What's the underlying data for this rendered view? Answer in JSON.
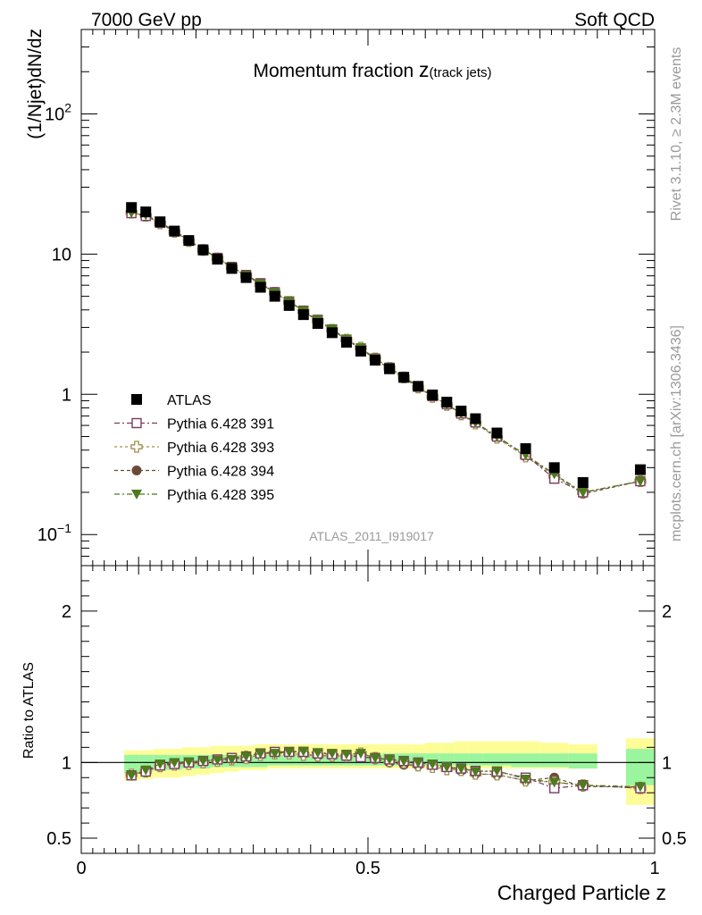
{
  "header": {
    "left": "7000 GeV pp",
    "right": "Soft QCD"
  },
  "side": {
    "rivet": "Rivet 3.1.10, ≥ 2.3M events",
    "mcplots": "mcplots.cern.ch [arXiv:1306.3436]"
  },
  "chart_data": {
    "type": "scatter",
    "title_main": "Momentum fraction ",
    "title_z": "z",
    "title_sub": "(track jets)",
    "ylabel": "(1/Njet)dN/dz",
    "xlabel": "Charged Particle z",
    "ratio_ylabel": "Ratio to ATLAS",
    "analysis_label": "ATLAS_2011_I919017",
    "xlim": [
      0,
      1
    ],
    "ylim": [
      0.06,
      400
    ],
    "ylog": true,
    "ratio_ylim": [
      0.4,
      2.3
    ],
    "x_ticks": [
      {
        "v": 0,
        "t": "0"
      },
      {
        "v": 0.5,
        "t": "0.5"
      },
      {
        "v": 1,
        "t": "1"
      }
    ],
    "y_ticks": [
      {
        "v": 100,
        "t": "10",
        "sup": "2"
      },
      {
        "v": 10,
        "t": "10",
        "sup": ""
      },
      {
        "v": 1,
        "t": "1",
        "sup": ""
      },
      {
        "v": 0.1,
        "t": "10",
        "sup": "−1"
      }
    ],
    "ratio_ticks": [
      {
        "v": 0.5,
        "t": "0.5"
      },
      {
        "v": 1,
        "t": "1"
      },
      {
        "v": 2,
        "t": "2"
      }
    ],
    "legend_placement": "left-middle",
    "x": [
      0.0875,
      0.1125,
      0.1375,
      0.1625,
      0.1875,
      0.2125,
      0.2375,
      0.2625,
      0.2875,
      0.3125,
      0.3375,
      0.3625,
      0.3875,
      0.4125,
      0.4375,
      0.4625,
      0.4875,
      0.5125,
      0.5375,
      0.5625,
      0.5875,
      0.6125,
      0.6375,
      0.6625,
      0.6875,
      0.725,
      0.775,
      0.825,
      0.875,
      0.975
    ],
    "bands": [
      {
        "x0": 0.075,
        "x1": 0.1,
        "yellow": [
          0.88,
          1.08
        ],
        "green": [
          0.93,
          1.05
        ]
      },
      {
        "x0": 0.1,
        "x1": 0.125,
        "yellow": [
          0.89,
          1.08
        ],
        "green": [
          0.94,
          1.05
        ]
      },
      {
        "x0": 0.125,
        "x1": 0.15,
        "yellow": [
          0.9,
          1.09
        ],
        "green": [
          0.95,
          1.05
        ]
      },
      {
        "x0": 0.15,
        "x1": 0.175,
        "yellow": [
          0.9,
          1.09
        ],
        "green": [
          0.95,
          1.05
        ]
      },
      {
        "x0": 0.175,
        "x1": 0.2,
        "yellow": [
          0.91,
          1.1
        ],
        "green": [
          0.96,
          1.05
        ]
      },
      {
        "x0": 0.2,
        "x1": 0.225,
        "yellow": [
          0.92,
          1.1
        ],
        "green": [
          0.96,
          1.05
        ]
      },
      {
        "x0": 0.225,
        "x1": 0.25,
        "yellow": [
          0.93,
          1.11
        ],
        "green": [
          0.97,
          1.05
        ]
      },
      {
        "x0": 0.25,
        "x1": 0.275,
        "yellow": [
          0.94,
          1.11
        ],
        "green": [
          0.97,
          1.05
        ]
      },
      {
        "x0": 0.275,
        "x1": 0.3,
        "yellow": [
          0.95,
          1.11
        ],
        "green": [
          0.97,
          1.05
        ]
      },
      {
        "x0": 0.3,
        "x1": 0.325,
        "yellow": [
          0.95,
          1.12
        ],
        "green": [
          0.97,
          1.05
        ]
      },
      {
        "x0": 0.325,
        "x1": 0.35,
        "yellow": [
          0.96,
          1.12
        ],
        "green": [
          0.98,
          1.05
        ]
      },
      {
        "x0": 0.35,
        "x1": 0.375,
        "yellow": [
          0.96,
          1.12
        ],
        "green": [
          0.98,
          1.05
        ]
      },
      {
        "x0": 0.375,
        "x1": 0.4,
        "yellow": [
          0.96,
          1.12
        ],
        "green": [
          0.98,
          1.05
        ]
      },
      {
        "x0": 0.4,
        "x1": 0.425,
        "yellow": [
          0.96,
          1.12
        ],
        "green": [
          0.98,
          1.05
        ]
      },
      {
        "x0": 0.425,
        "x1": 0.45,
        "yellow": [
          0.96,
          1.12
        ],
        "green": [
          0.98,
          1.05
        ]
      },
      {
        "x0": 0.45,
        "x1": 0.475,
        "yellow": [
          0.96,
          1.12
        ],
        "green": [
          0.98,
          1.05
        ]
      },
      {
        "x0": 0.475,
        "x1": 0.5,
        "yellow": [
          0.96,
          1.12
        ],
        "green": [
          0.98,
          1.05
        ]
      },
      {
        "x0": 0.5,
        "x1": 0.525,
        "yellow": [
          0.96,
          1.12
        ],
        "green": [
          0.98,
          1.05
        ]
      },
      {
        "x0": 0.525,
        "x1": 0.55,
        "yellow": [
          0.96,
          1.12
        ],
        "green": [
          0.98,
          1.06
        ]
      },
      {
        "x0": 0.55,
        "x1": 0.575,
        "yellow": [
          0.96,
          1.12
        ],
        "green": [
          0.98,
          1.06
        ]
      },
      {
        "x0": 0.575,
        "x1": 0.6,
        "yellow": [
          0.96,
          1.12
        ],
        "green": [
          0.98,
          1.06
        ]
      },
      {
        "x0": 0.6,
        "x1": 0.625,
        "yellow": [
          0.96,
          1.13
        ],
        "green": [
          0.98,
          1.06
        ]
      },
      {
        "x0": 0.625,
        "x1": 0.65,
        "yellow": [
          0.96,
          1.13
        ],
        "green": [
          0.98,
          1.06
        ]
      },
      {
        "x0": 0.65,
        "x1": 0.675,
        "yellow": [
          0.96,
          1.14
        ],
        "green": [
          0.98,
          1.06
        ]
      },
      {
        "x0": 0.675,
        "x1": 0.7,
        "yellow": [
          0.96,
          1.14
        ],
        "green": [
          0.98,
          1.06
        ]
      },
      {
        "x0": 0.7,
        "x1": 0.75,
        "yellow": [
          0.96,
          1.14
        ],
        "green": [
          0.98,
          1.06
        ]
      },
      {
        "x0": 0.75,
        "x1": 0.8,
        "yellow": [
          0.96,
          1.14
        ],
        "green": [
          0.97,
          1.06
        ]
      },
      {
        "x0": 0.8,
        "x1": 0.85,
        "yellow": [
          0.96,
          1.13
        ],
        "green": [
          0.97,
          1.06
        ]
      },
      {
        "x0": 0.85,
        "x1": 0.9,
        "yellow": [
          0.96,
          1.12
        ],
        "green": [
          0.96,
          1.06
        ]
      },
      {
        "x0": 0.95,
        "x1": 1.0,
        "yellow": [
          0.72,
          1.16
        ],
        "green": [
          0.85,
          1.09
        ]
      }
    ],
    "series": [
      {
        "name": "ATLAS",
        "marker": "square-filled",
        "color": "#000000",
        "values": [
          21.5,
          20.0,
          17.0,
          14.6,
          12.5,
          10.7,
          9.2,
          7.9,
          6.8,
          5.8,
          5.0,
          4.3,
          3.7,
          3.2,
          2.75,
          2.35,
          2.03,
          1.75,
          1.52,
          1.32,
          1.14,
          0.99,
          0.88,
          0.76,
          0.67,
          0.53,
          0.41,
          0.3,
          0.235,
          0.29
        ]
      },
      {
        "name": "Pythia 6.428 391",
        "marker": "square-open",
        "color": "#7a3b5e",
        "dash": "6,3,2,3",
        "values": [
          19.6,
          18.7,
          16.7,
          14.5,
          12.5,
          10.8,
          9.4,
          8.1,
          7.1,
          6.2,
          5.35,
          4.6,
          3.95,
          3.4,
          2.9,
          2.45,
          2.1,
          1.8,
          1.55,
          1.33,
          1.14,
          0.97,
          0.85,
          0.73,
          0.63,
          0.5,
          0.37,
          0.25,
          0.2,
          0.24
        ]
      },
      {
        "name": "Pythia 6.428 393",
        "marker": "cross-open",
        "color": "#a09050",
        "dash": "3,3",
        "values": [
          19.8,
          18.8,
          16.6,
          14.4,
          12.4,
          10.7,
          9.3,
          8.0,
          7.0,
          6.1,
          5.3,
          4.55,
          3.9,
          3.35,
          2.88,
          2.45,
          2.15,
          1.8,
          1.54,
          1.32,
          1.12,
          0.96,
          0.84,
          0.72,
          0.62,
          0.49,
          0.36,
          0.26,
          0.2,
          0.24
        ]
      },
      {
        "name": "Pythia 6.428 394",
        "marker": "circle-filled",
        "color": "#6b4a3a",
        "dash": "4,3",
        "values": [
          19.7,
          18.9,
          16.8,
          14.6,
          12.5,
          10.8,
          9.4,
          8.1,
          7.1,
          6.2,
          5.35,
          4.6,
          3.9,
          3.35,
          2.88,
          2.45,
          2.12,
          1.78,
          1.52,
          1.3,
          1.12,
          0.97,
          0.85,
          0.72,
          0.62,
          0.49,
          0.36,
          0.27,
          0.195,
          0.24
        ]
      },
      {
        "name": "Pythia 6.428 395",
        "marker": "triangle-down",
        "color": "#4f7a1e",
        "dash": "6,3,2,3",
        "values": [
          19.7,
          19.0,
          16.9,
          14.7,
          12.6,
          10.8,
          9.35,
          8.05,
          7.05,
          6.15,
          5.3,
          4.6,
          3.95,
          3.4,
          2.92,
          2.48,
          2.15,
          1.8,
          1.55,
          1.33,
          1.14,
          0.98,
          0.85,
          0.73,
          0.63,
          0.5,
          0.37,
          0.27,
          0.2,
          0.24
        ]
      }
    ],
    "ratio_series": [
      {
        "name": "Pythia 6.428 391",
        "values": [
          0.915,
          0.94,
          0.98,
          0.99,
          1.0,
          1.01,
          1.02,
          1.03,
          1.04,
          1.06,
          1.07,
          1.07,
          1.07,
          1.06,
          1.055,
          1.045,
          1.035,
          1.03,
          1.02,
          1.01,
          1.0,
          0.985,
          0.97,
          0.96,
          0.945,
          0.94,
          0.9,
          0.83,
          0.85,
          0.83
        ]
      },
      {
        "name": "Pythia 6.428 393",
        "values": [
          0.92,
          0.94,
          0.975,
          0.985,
          0.99,
          1.0,
          1.01,
          1.02,
          1.03,
          1.05,
          1.06,
          1.06,
          1.05,
          1.045,
          1.045,
          1.04,
          1.06,
          1.03,
          1.01,
          1.0,
          0.98,
          0.97,
          0.955,
          0.95,
          0.925,
          0.92,
          0.88,
          0.87,
          0.85,
          0.83
        ]
      },
      {
        "name": "Pythia 6.428 394",
        "values": [
          0.915,
          0.945,
          0.985,
          0.995,
          1.0,
          1.01,
          1.02,
          1.03,
          1.045,
          1.06,
          1.07,
          1.07,
          1.055,
          1.045,
          1.045,
          1.04,
          1.045,
          1.02,
          1.0,
          0.985,
          0.98,
          0.98,
          0.965,
          0.945,
          0.925,
          0.92,
          0.88,
          0.9,
          0.84,
          0.84
        ]
      },
      {
        "name": "Pythia 6.428 395",
        "values": [
          0.915,
          0.95,
          0.99,
          1.0,
          1.005,
          1.01,
          1.015,
          1.02,
          1.04,
          1.06,
          1.06,
          1.07,
          1.075,
          1.065,
          1.06,
          1.055,
          1.06,
          1.03,
          1.02,
          1.01,
          1.0,
          0.99,
          0.97,
          0.96,
          0.94,
          0.945,
          0.89,
          0.87,
          0.85,
          0.84
        ]
      }
    ]
  }
}
